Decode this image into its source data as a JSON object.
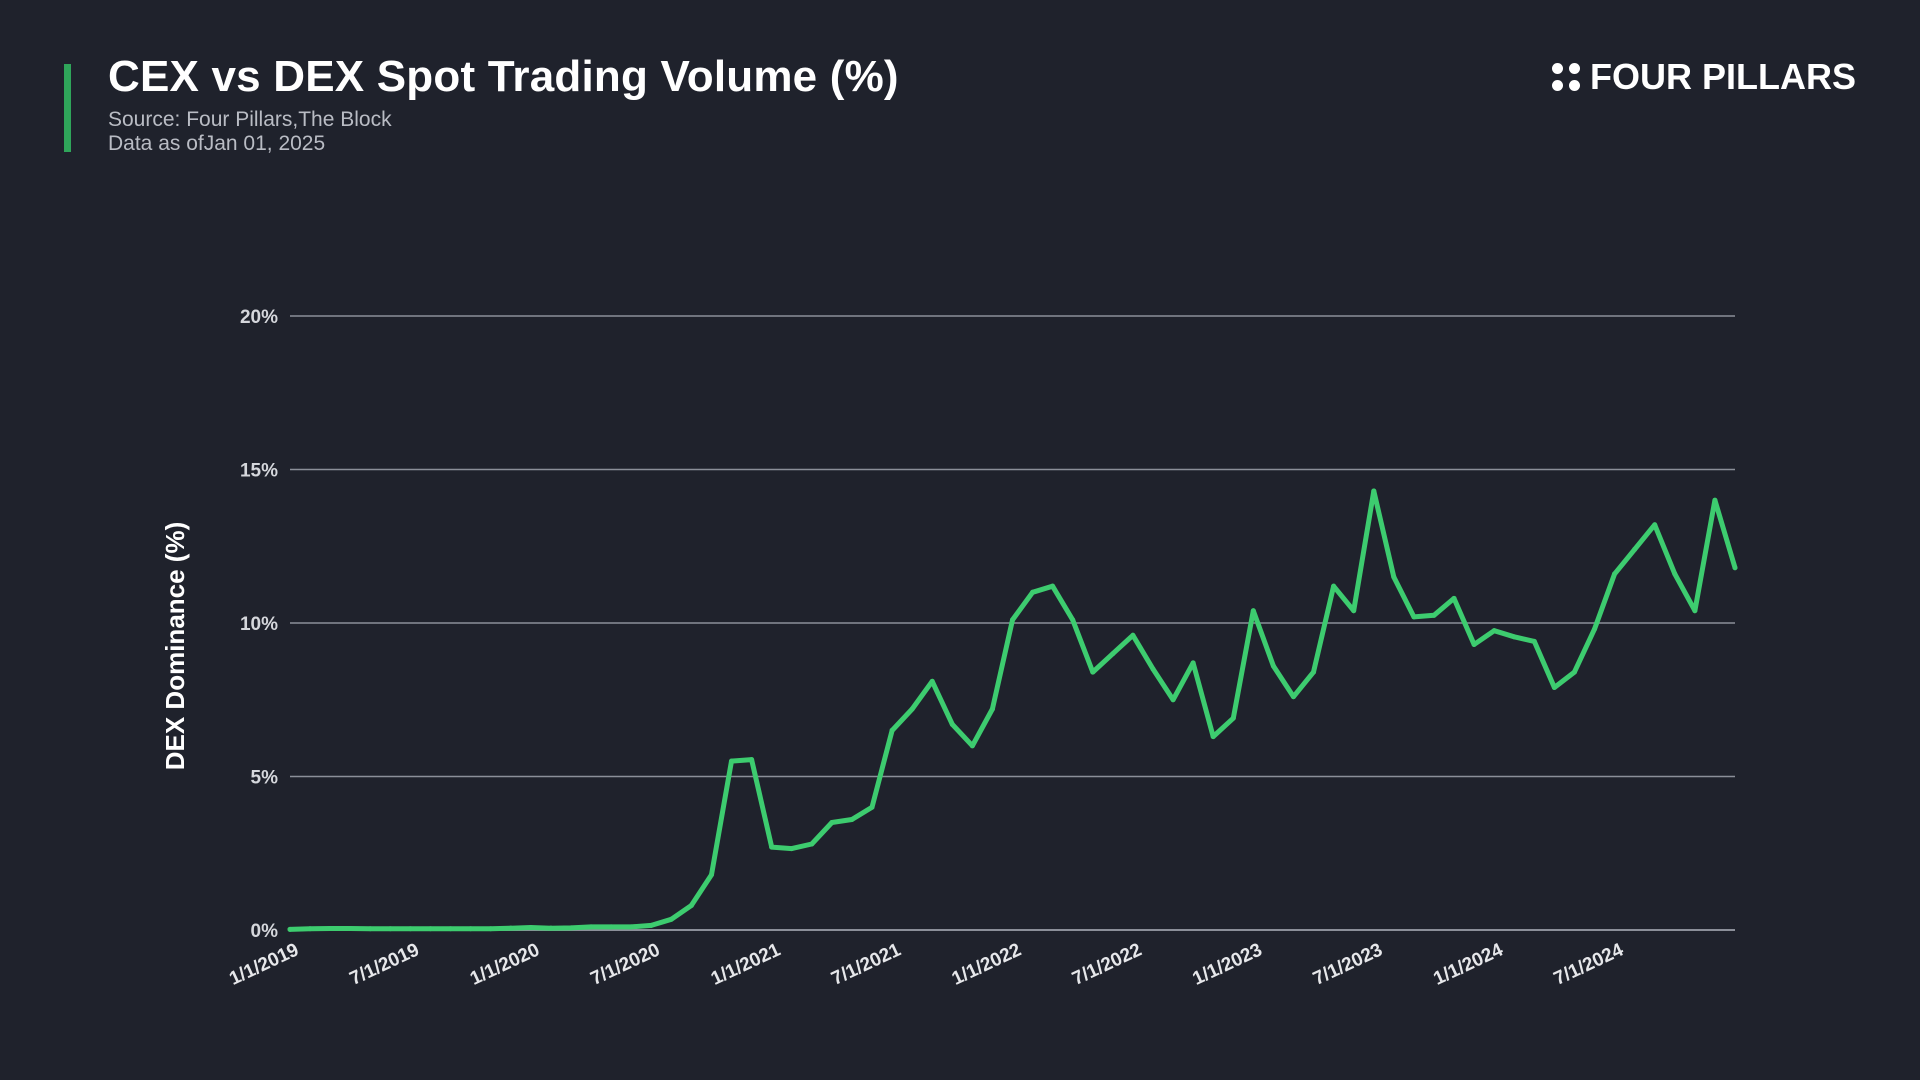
{
  "header": {
    "title": "CEX vs DEX Spot Trading Volume (%)",
    "source": "Source: Four Pillars,The Block",
    "as_of": "Data as ofJan 01, 2025"
  },
  "logo": {
    "text": "FOUR PILLARS",
    "icon": "four-dots-icon"
  },
  "colors": {
    "background": "#1f222c",
    "accent": "#2fa55a",
    "line": "#3dcc6f",
    "grid": "#8b8f99"
  },
  "chart_data": {
    "type": "line",
    "title": "CEX vs DEX Spot Trading Volume (%)",
    "xlabel": "",
    "ylabel": "DEX Dominance (%)",
    "ylim": [
      0,
      20
    ],
    "yticks": [
      0,
      5,
      10,
      15,
      20
    ],
    "ytick_labels": [
      "0%",
      "5%",
      "10%",
      "15%",
      "20%"
    ],
    "xlim": [
      "2019-01",
      "2025-01"
    ],
    "xtick_labels": [
      "1/1/2019",
      "7/1/2019",
      "1/1/2020",
      "7/1/2020",
      "1/1/2021",
      "7/1/2021",
      "1/1/2022",
      "7/1/2022",
      "1/1/2023",
      "7/1/2023",
      "1/1/2024",
      "7/1/2024"
    ],
    "grid": true,
    "legend": "none",
    "series": [
      {
        "x": [
          "2019-01",
          "2019-02",
          "2019-03",
          "2019-04",
          "2019-05",
          "2019-06",
          "2019-07",
          "2019-08",
          "2019-09",
          "2019-10",
          "2019-11",
          "2019-12",
          "2020-01",
          "2020-02",
          "2020-03",
          "2020-04",
          "2020-05",
          "2020-06",
          "2020-07",
          "2020-08",
          "2020-09",
          "2020-10",
          "2020-11",
          "2020-12",
          "2021-01",
          "2021-02",
          "2021-03",
          "2021-04",
          "2021-05",
          "2021-06",
          "2021-07",
          "2021-08",
          "2021-09",
          "2021-10",
          "2021-11",
          "2021-12",
          "2022-01",
          "2022-02",
          "2022-03",
          "2022-04",
          "2022-05",
          "2022-06",
          "2022-07",
          "2022-08",
          "2022-09",
          "2022-10",
          "2022-11",
          "2022-12",
          "2023-01",
          "2023-02",
          "2023-03",
          "2023-04",
          "2023-05",
          "2023-06",
          "2023-07",
          "2023-08",
          "2023-09",
          "2023-10",
          "2023-11",
          "2023-12",
          "2024-01",
          "2024-02",
          "2024-03",
          "2024-04",
          "2024-05",
          "2024-06",
          "2024-07",
          "2024-08",
          "2024-09",
          "2024-10",
          "2024-11",
          "2024-12",
          "2025-01"
        ],
        "values": [
          0.02,
          0.04,
          0.05,
          0.05,
          0.04,
          0.04,
          0.04,
          0.04,
          0.04,
          0.04,
          0.04,
          0.06,
          0.08,
          0.06,
          0.07,
          0.1,
          0.1,
          0.1,
          0.15,
          0.35,
          0.8,
          1.8,
          5.5,
          5.55,
          2.7,
          2.65,
          2.8,
          3.5,
          3.6,
          4.0,
          6.5,
          7.2,
          8.1,
          6.7,
          6.0,
          7.2,
          10.1,
          11.0,
          11.2,
          10.1,
          8.4,
          9.0,
          9.6,
          8.5,
          7.5,
          8.7,
          6.3,
          6.9,
          10.4,
          8.6,
          7.6,
          8.4,
          11.2,
          10.4,
          14.3,
          11.5,
          10.2,
          10.25,
          10.8,
          9.3,
          9.75,
          9.55,
          9.4,
          7.9,
          8.4,
          9.8,
          11.6,
          12.4,
          13.2,
          11.6,
          10.4,
          14.0,
          11.8
        ]
      }
    ]
  }
}
